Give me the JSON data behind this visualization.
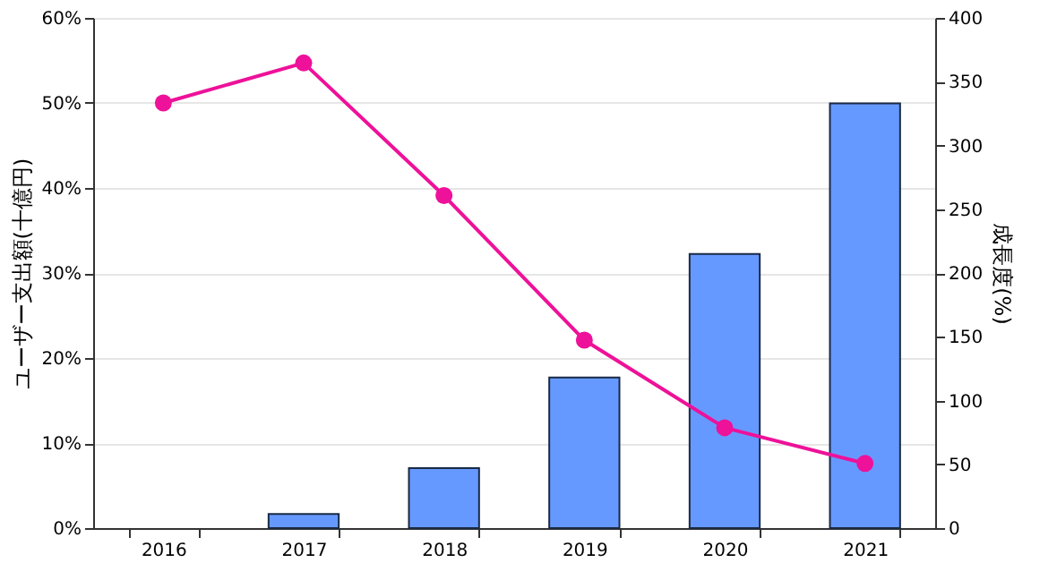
{
  "chart_data": {
    "type": "bar",
    "categories": [
      "2016",
      "2017",
      "2018",
      "2019",
      "2020",
      "2021"
    ],
    "ylabel": "ユーザー支出額(十億円)",
    "y2label": "成長度(%)",
    "ylim": [
      0,
      60
    ],
    "yticks": [
      {
        "value": 0,
        "label": "0%"
      },
      {
        "value": 10,
        "label": "10%"
      },
      {
        "value": 20,
        "label": "20%"
      },
      {
        "value": 30,
        "label": "30%"
      },
      {
        "value": 40,
        "label": "40%"
      },
      {
        "value": 50,
        "label": "50%"
      },
      {
        "value": 60,
        "label": "60%"
      }
    ],
    "y2lim": [
      0,
      400
    ],
    "y2ticks": [
      0,
      50,
      100,
      150,
      200,
      250,
      300,
      350,
      400
    ],
    "grid": "y",
    "series": [
      {
        "axis": "y2",
        "color": "#6699ff",
        "values": [
          null,
          11,
          47,
          118,
          215,
          333
        ]
      },
      {
        "type": "line",
        "axis": "y",
        "color": "#ee1199",
        "marker": "circle",
        "line_style": "solid",
        "values": [
          50,
          54.7,
          39.1,
          22.1,
          11.8,
          7.6
        ]
      }
    ]
  }
}
